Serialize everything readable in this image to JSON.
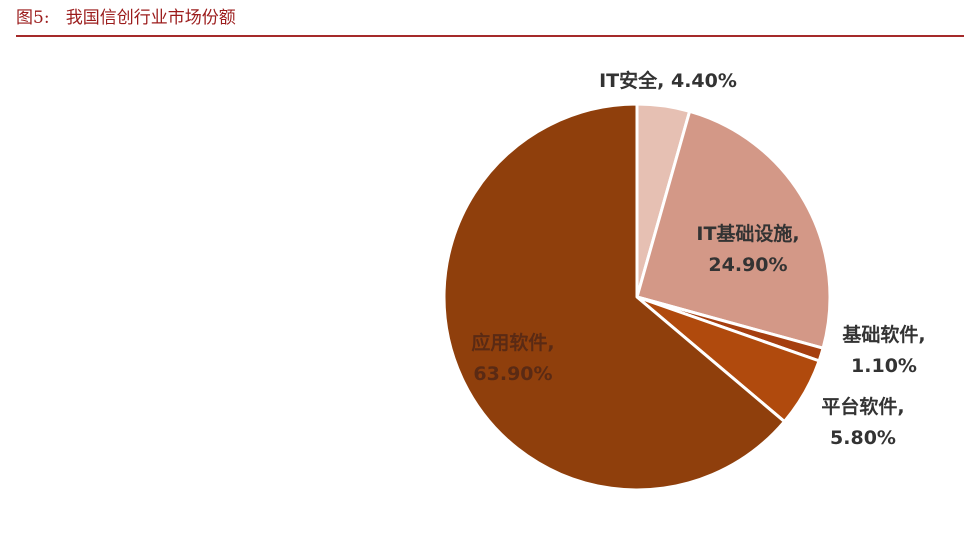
{
  "figure": {
    "number": "图5:",
    "title": "我国信创行业市场份额"
  },
  "chart_data": {
    "type": "pie",
    "title": "",
    "slices": [
      {
        "name": "IT安全",
        "value": 4.4,
        "value_label": "4.40%",
        "color": "#e6c0b3",
        "label_color": "#333333"
      },
      {
        "name": "IT基础设施",
        "value": 24.9,
        "value_label": "24.90%",
        "color": "#d39887",
        "label_color": "#333333"
      },
      {
        "name": "基础软件",
        "value": 1.1,
        "value_label": "1.10%",
        "color": "#a53f10",
        "label_color": "#333333"
      },
      {
        "name": "平台软件",
        "value": 5.8,
        "value_label": "5.80%",
        "color": "#b04a0d",
        "label_color": "#333333"
      },
      {
        "name": "应用软件",
        "value": 63.9,
        "value_label": "63.90%",
        "color": "#8f3f0c",
        "label_color": "#5a2a14"
      }
    ],
    "start_angle": "12 o'clock",
    "direction": "clockwise",
    "legend": "none"
  }
}
